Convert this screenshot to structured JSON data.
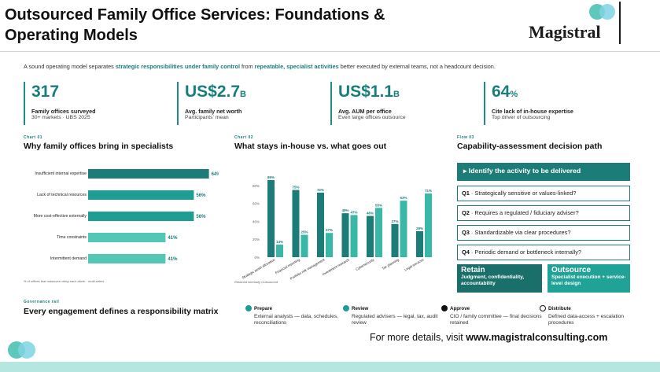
{
  "header": {
    "title": "Outsourced Family Office Services: Foundations & Operating Models",
    "brand": "Magistral",
    "intro_pre": "A sound operating model separates ",
    "intro_b1": "strategic responsibilities under family control",
    "intro_mid": " from ",
    "intro_b2": "repeatable, specialist activities",
    "intro_post": " better executed by external teams, not a headcount decision."
  },
  "kpis": [
    {
      "value": "317",
      "unit": "",
      "label": "Family offices surveyed",
      "sub": "30+ markets · UBS 2025"
    },
    {
      "value": "US$2.7",
      "unit": "B",
      "label": "Avg. family net worth",
      "sub": "Participants' mean"
    },
    {
      "value": "US$1.1",
      "unit": "B",
      "label": "Avg. AUM per office",
      "sub": "Even large offices outsource"
    },
    {
      "value": "64",
      "unit": "%",
      "label": "Cite lack of in-house expertise",
      "sub": "Top driver of outsourcing"
    }
  ],
  "chart1": {
    "kicker": "Chart 01",
    "title": "Why family offices bring in specialists",
    "footnote": "% of offices that outsource citing each driver · multi-select"
  },
  "chart2": {
    "kicker": "Chart 02",
    "title": "What stays in-house vs. what goes out",
    "legend": "Retained internally   Outsourced"
  },
  "flow": {
    "kicker": "Flow 03",
    "title": "Capability-assessment decision path",
    "head": "Identify the activity to be delivered",
    "questions": [
      {
        "num": "Q1",
        "text": " · Strategically sensitive or values-linked?"
      },
      {
        "num": "Q2",
        "text": " · Requires a regulated / fiduciary adviser?"
      },
      {
        "num": "Q3",
        "text": " · Standardizable via clear procedures?"
      },
      {
        "num": "Q4",
        "text": " · Periodic demand or bottleneck internally?"
      }
    ],
    "retain": {
      "title": "Retain",
      "sub": "Judgment, confidentiality, accountability"
    },
    "outsource": {
      "title": "Outsource",
      "sub": "Specialist execution + service-level design"
    }
  },
  "governance": {
    "kicker": "Governance rail",
    "title": "Every engagement defines a responsibility matrix",
    "steps": [
      {
        "name": "Prepare",
        "desc": "External analysts — data, schedules, reconciliations"
      },
      {
        "name": "Review",
        "desc": "Regulated advisers — legal, tax, audit review"
      },
      {
        "name": "Approve",
        "desc": "CIO / family committee — final decisions retained"
      },
      {
        "name": "Distribute",
        "desc": "Defined data-access + escalation procedures"
      }
    ]
  },
  "footer": {
    "pre": "For more details, visit ",
    "link": "www.magistralconsulting.com"
  },
  "colors": {
    "teal_dark": "#1b7c78",
    "teal": "#1e9d92",
    "teal_light": "#52c7b6",
    "accent": "#177e7a"
  },
  "chart_data": [
    {
      "type": "bar",
      "orientation": "horizontal",
      "title": "Why family offices bring in specialists",
      "categories": [
        "Insufficient internal expertise",
        "Lack of technical resources",
        "More cost-effective externally",
        "Time constraints",
        "Intermittent demand"
      ],
      "values": [
        64,
        56,
        56,
        41,
        41
      ],
      "unit": "%",
      "xlim": [
        0,
        100
      ]
    },
    {
      "type": "bar",
      "orientation": "vertical",
      "title": "What stays in-house vs. what goes out",
      "categories": [
        "Strategic asset allocation",
        "Financial reporting",
        "Portfolio risk management",
        "Investment research",
        "Cybersecurity",
        "Tax planning",
        "Legal services"
      ],
      "series": [
        {
          "name": "Retained internally",
          "values": [
            86,
            75,
            72,
            49,
            46,
            37,
            29
          ]
        },
        {
          "name": "Outsourced",
          "values": [
            14,
            25,
            27,
            47,
            55,
            63,
            71
          ]
        }
      ],
      "ylim": [
        0,
        100
      ],
      "yticks": [
        "0%",
        "20%",
        "40%",
        "60%",
        "80%"
      ],
      "unit": "%"
    }
  ]
}
